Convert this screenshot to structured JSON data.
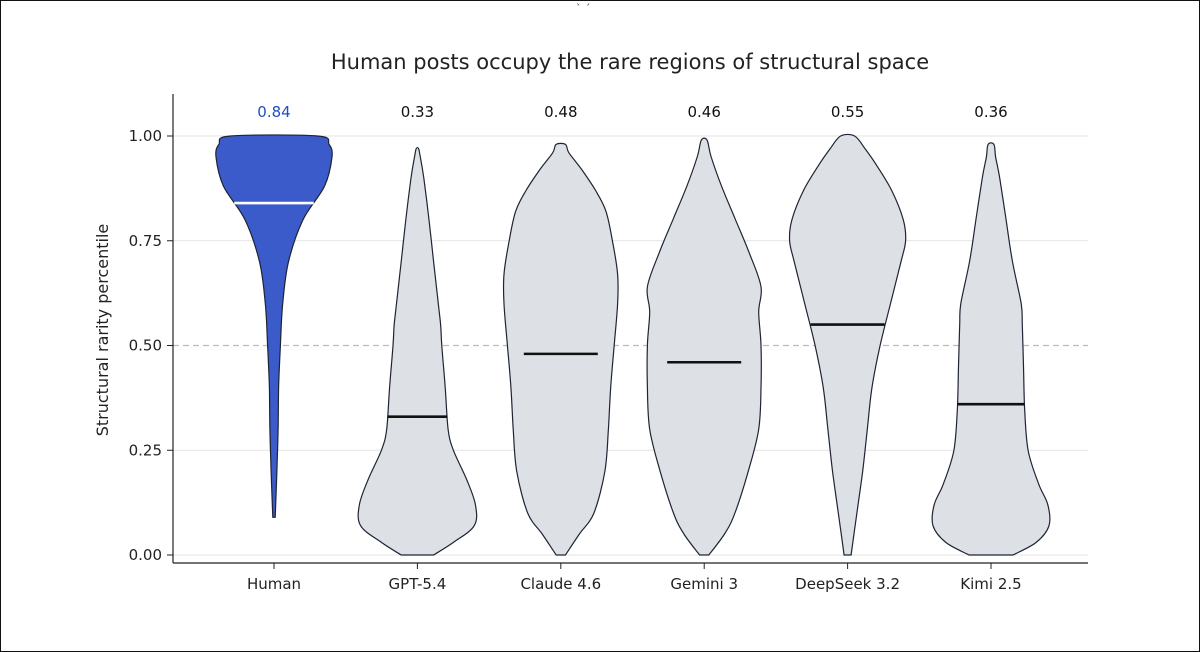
{
  "chart_data": {
    "type": "violin",
    "title": "Human posts occupy the rare regions of structural space",
    "ylabel": "Structural rarity percentile",
    "xlabel": "",
    "ylim": [
      0,
      1.1
    ],
    "yticks": [
      "0.00",
      "0.25",
      "0.50",
      "0.75",
      "1.00"
    ],
    "reference_line": 0.5,
    "grid": "horizontal",
    "categories": [
      "Human",
      "GPT-5.4",
      "Claude 4.6",
      "Gemini 3",
      "DeepSeek 3.2",
      "Kimi 2.5"
    ],
    "medians": [
      0.84,
      0.33,
      0.48,
      0.46,
      0.55,
      0.36
    ],
    "median_labels": [
      "0.84",
      "0.33",
      "0.48",
      "0.46",
      "0.55",
      "0.36"
    ],
    "ranges": [
      [
        0.09,
        1.0
      ],
      [
        0.0,
        0.97
      ],
      [
        0.0,
        0.98
      ],
      [
        0.0,
        0.99
      ],
      [
        0.0,
        1.0
      ],
      [
        0.0,
        0.98
      ]
    ],
    "highlight": {
      "category": "Human",
      "fill": "#3a5bc9",
      "median_color": "#ffffff",
      "label_color": "#1f4fc7"
    },
    "default_style": {
      "fill": "#dde0e5",
      "median_color": "#111111",
      "label_color": "#111111"
    },
    "density_profiles": [
      [
        [
          0.09,
          0.02
        ],
        [
          0.2,
          0.05
        ],
        [
          0.3,
          0.07
        ],
        [
          0.4,
          0.08
        ],
        [
          0.5,
          0.11
        ],
        [
          0.6,
          0.15
        ],
        [
          0.7,
          0.25
        ],
        [
          0.8,
          0.5
        ],
        [
          0.88,
          0.87
        ],
        [
          0.95,
          1.0
        ],
        [
          0.98,
          0.95
        ],
        [
          1.0,
          0.75
        ]
      ],
      [
        [
          0.0,
          0.28
        ],
        [
          0.03,
          0.62
        ],
        [
          0.07,
          0.98
        ],
        [
          0.12,
          1.0
        ],
        [
          0.18,
          0.85
        ],
        [
          0.25,
          0.62
        ],
        [
          0.3,
          0.53
        ],
        [
          0.4,
          0.48
        ],
        [
          0.5,
          0.42
        ],
        [
          0.55,
          0.4
        ],
        [
          0.6,
          0.36
        ],
        [
          0.7,
          0.28
        ],
        [
          0.8,
          0.2
        ],
        [
          0.9,
          0.11
        ],
        [
          0.95,
          0.05
        ],
        [
          0.97,
          0.02
        ]
      ],
      [
        [
          0.0,
          0.08
        ],
        [
          0.05,
          0.32
        ],
        [
          0.1,
          0.57
        ],
        [
          0.2,
          0.76
        ],
        [
          0.3,
          0.82
        ],
        [
          0.4,
          0.86
        ],
        [
          0.5,
          0.92
        ],
        [
          0.6,
          0.98
        ],
        [
          0.67,
          0.98
        ],
        [
          0.75,
          0.89
        ],
        [
          0.82,
          0.78
        ],
        [
          0.87,
          0.6
        ],
        [
          0.92,
          0.36
        ],
        [
          0.96,
          0.14
        ],
        [
          0.98,
          0.08
        ]
      ],
      [
        [
          0.0,
          0.08
        ],
        [
          0.05,
          0.35
        ],
        [
          0.1,
          0.53
        ],
        [
          0.2,
          0.76
        ],
        [
          0.3,
          0.94
        ],
        [
          0.4,
          0.98
        ],
        [
          0.5,
          0.98
        ],
        [
          0.58,
          0.94
        ],
        [
          0.64,
          0.98
        ],
        [
          0.72,
          0.78
        ],
        [
          0.8,
          0.54
        ],
        [
          0.88,
          0.3
        ],
        [
          0.95,
          0.12
        ],
        [
          0.99,
          0.05
        ]
      ],
      [
        [
          0.0,
          0.06
        ],
        [
          0.1,
          0.16
        ],
        [
          0.2,
          0.26
        ],
        [
          0.3,
          0.34
        ],
        [
          0.4,
          0.42
        ],
        [
          0.5,
          0.56
        ],
        [
          0.6,
          0.74
        ],
        [
          0.7,
          0.92
        ],
        [
          0.75,
          1.0
        ],
        [
          0.8,
          0.96
        ],
        [
          0.87,
          0.76
        ],
        [
          0.93,
          0.5
        ],
        [
          0.97,
          0.3
        ],
        [
          1.0,
          0.12
        ]
      ],
      [
        [
          0.0,
          0.38
        ],
        [
          0.03,
          0.78
        ],
        [
          0.07,
          1.0
        ],
        [
          0.12,
          0.98
        ],
        [
          0.17,
          0.82
        ],
        [
          0.25,
          0.64
        ],
        [
          0.35,
          0.58
        ],
        [
          0.45,
          0.56
        ],
        [
          0.55,
          0.54
        ],
        [
          0.6,
          0.52
        ],
        [
          0.7,
          0.37
        ],
        [
          0.8,
          0.26
        ],
        [
          0.9,
          0.15
        ],
        [
          0.95,
          0.08
        ],
        [
          0.98,
          0.05
        ]
      ]
    ]
  }
}
